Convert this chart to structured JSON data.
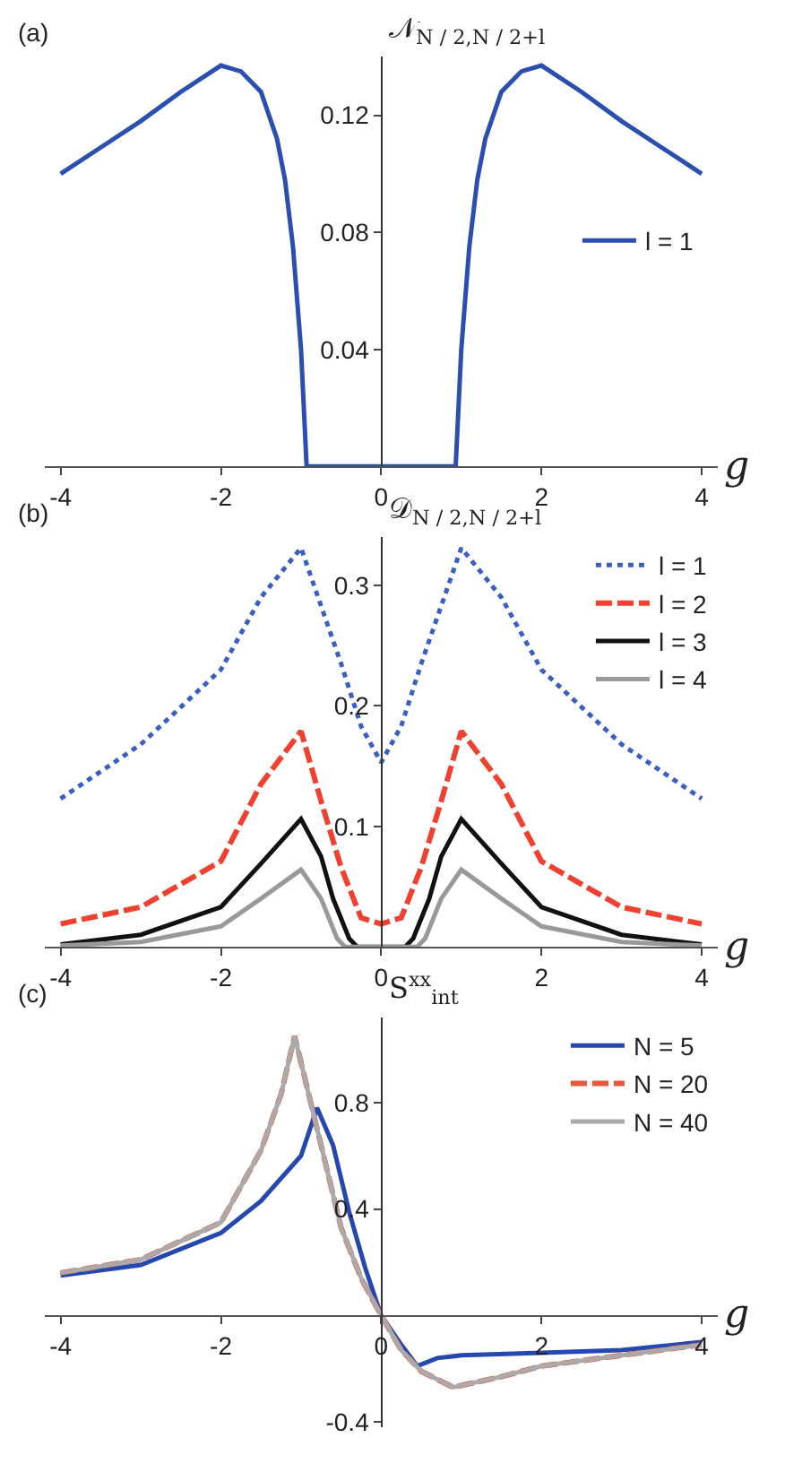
{
  "chart_data": [
    {
      "type": "line",
      "title": "(a)",
      "xlabel": "g",
      "ylabel": "𝒩$_{N / 2,N / 2+l}$",
      "xlim": [
        -4.2,
        4.2
      ],
      "ylim": [
        0,
        0.14
      ],
      "xticks": [
        -4,
        -2,
        0,
        2,
        4
      ],
      "yticks": [
        0.04,
        0.08,
        0.12
      ],
      "legend": "right",
      "series": [
        {
          "name": "l = 1",
          "color": "#2a4fb0",
          "line_style": "solid",
          "x": [
            -4,
            -3.5,
            -3,
            -2.5,
            -2,
            -1.75,
            -1.5,
            -1.3,
            -1.2,
            -1.1,
            -1.0,
            -0.93,
            0.93,
            1.0,
            1.1,
            1.2,
            1.3,
            1.5,
            1.75,
            2,
            2.5,
            3,
            3.5,
            4
          ],
          "values": [
            0.1,
            0.109,
            0.118,
            0.128,
            0.137,
            0.135,
            0.128,
            0.112,
            0.098,
            0.075,
            0.04,
            0,
            0,
            0.04,
            0.075,
            0.098,
            0.112,
            0.128,
            0.135,
            0.137,
            0.128,
            0.118,
            0.109,
            0.1
          ]
        }
      ]
    },
    {
      "type": "line",
      "title": "(b)",
      "xlabel": "g",
      "ylabel": "𝒟$_{N / 2,N / 2+l}$",
      "xlim": [
        -4.2,
        4.2
      ],
      "ylim": [
        0,
        0.34
      ],
      "xticks": [
        -4,
        -2,
        0,
        2,
        4
      ],
      "yticks": [
        0.1,
        0.2,
        0.3
      ],
      "legend": "top right",
      "series": [
        {
          "name": "l = 1",
          "color": "#3a5fc0",
          "line_style": "dotted",
          "x": [
            -4,
            -3,
            -2,
            -1.5,
            -1,
            -0.5,
            -0.25,
            0,
            0.25,
            0.5,
            1,
            1.5,
            2,
            3,
            4
          ],
          "values": [
            0.123,
            0.168,
            0.23,
            0.29,
            0.331,
            0.235,
            0.183,
            0.153,
            0.183,
            0.235,
            0.331,
            0.29,
            0.23,
            0.168,
            0.123
          ]
        },
        {
          "name": "l = 2",
          "color": "#f04030",
          "line_style": "dashed",
          "x": [
            -4,
            -3,
            -2,
            -1.5,
            -1,
            -0.75,
            -0.5,
            -0.25,
            0,
            0.25,
            0.5,
            0.75,
            1,
            1.5,
            2,
            3,
            4
          ],
          "values": [
            0.019,
            0.033,
            0.071,
            0.135,
            0.179,
            0.121,
            0.066,
            0.024,
            0.019,
            0.024,
            0.066,
            0.121,
            0.179,
            0.135,
            0.071,
            0.033,
            0.019
          ]
        },
        {
          "name": "l = 3",
          "color": "#111111",
          "line_style": "solid",
          "x": [
            -4,
            -3,
            -2,
            -1.5,
            -1,
            -0.75,
            -0.6,
            -0.4,
            -0.3,
            0,
            0.3,
            0.4,
            0.6,
            0.75,
            1,
            1.5,
            2,
            3,
            4
          ],
          "values": [
            0.002,
            0.01,
            0.033,
            0.069,
            0.106,
            0.075,
            0.04,
            0.007,
            0,
            0,
            0,
            0.007,
            0.04,
            0.075,
            0.106,
            0.069,
            0.033,
            0.01,
            0.002
          ]
        },
        {
          "name": "l = 4",
          "color": "#999999",
          "line_style": "solid",
          "x": [
            -4,
            -3,
            -2,
            -1.5,
            -1,
            -0.75,
            -0.55,
            -0.45,
            0,
            0.45,
            0.55,
            0.75,
            1,
            1.5,
            2,
            3,
            4
          ],
          "values": [
            0.001,
            0.004,
            0.017,
            0.04,
            0.064,
            0.04,
            0.007,
            0,
            0,
            0,
            0.007,
            0.04,
            0.064,
            0.04,
            0.017,
            0.004,
            0.001
          ]
        }
      ]
    },
    {
      "type": "line",
      "title": "(c)",
      "xlabel": "g",
      "ylabel": "S$^{xx}$$_{int}$",
      "xlim": [
        -4.2,
        4.2
      ],
      "ylim": [
        -0.42,
        1.12
      ],
      "xticks": [
        -4,
        -2,
        0,
        2,
        4
      ],
      "yticks": [
        -0.4,
        0.4,
        0.8
      ],
      "legend": "top right",
      "series": [
        {
          "name": "N = 5",
          "color": "#2448b0",
          "line_style": "solid",
          "x": [
            -4,
            -3,
            -2,
            -1.5,
            -1,
            -0.8,
            -0.6,
            -0.4,
            -0.2,
            0,
            0.25,
            0.45,
            0.7,
            1,
            2,
            3,
            4
          ],
          "values": [
            0.15,
            0.19,
            0.31,
            0.43,
            0.6,
            0.78,
            0.64,
            0.39,
            0.18,
            0,
            -0.11,
            -0.19,
            -0.16,
            -0.15,
            -0.14,
            -0.13,
            -0.1
          ]
        },
        {
          "name": "N = 20",
          "color": "#e8563c",
          "line_style": "dashed",
          "x": [
            -4,
            -3,
            -2,
            -1.5,
            -1.25,
            -1.08,
            -0.75,
            -0.5,
            -0.25,
            0,
            0.25,
            0.5,
            0.9,
            1.5,
            2,
            3,
            4
          ],
          "values": [
            0.16,
            0.21,
            0.35,
            0.62,
            0.83,
            1.05,
            0.64,
            0.33,
            0.14,
            0,
            -0.13,
            -0.21,
            -0.27,
            -0.23,
            -0.19,
            -0.15,
            -0.11
          ]
        },
        {
          "name": "N = 40",
          "color": "#aaaaaa",
          "line_style": "solid",
          "x": [
            -4,
            -3,
            -2,
            -1.5,
            -1.25,
            -1.08,
            -0.75,
            -0.5,
            -0.25,
            0,
            0.25,
            0.5,
            0.9,
            1.5,
            2,
            3,
            4
          ],
          "values": [
            0.16,
            0.21,
            0.35,
            0.62,
            0.83,
            1.05,
            0.64,
            0.33,
            0.14,
            0,
            -0.13,
            -0.21,
            -0.27,
            -0.23,
            -0.19,
            -0.15,
            -0.11
          ]
        }
      ]
    }
  ]
}
